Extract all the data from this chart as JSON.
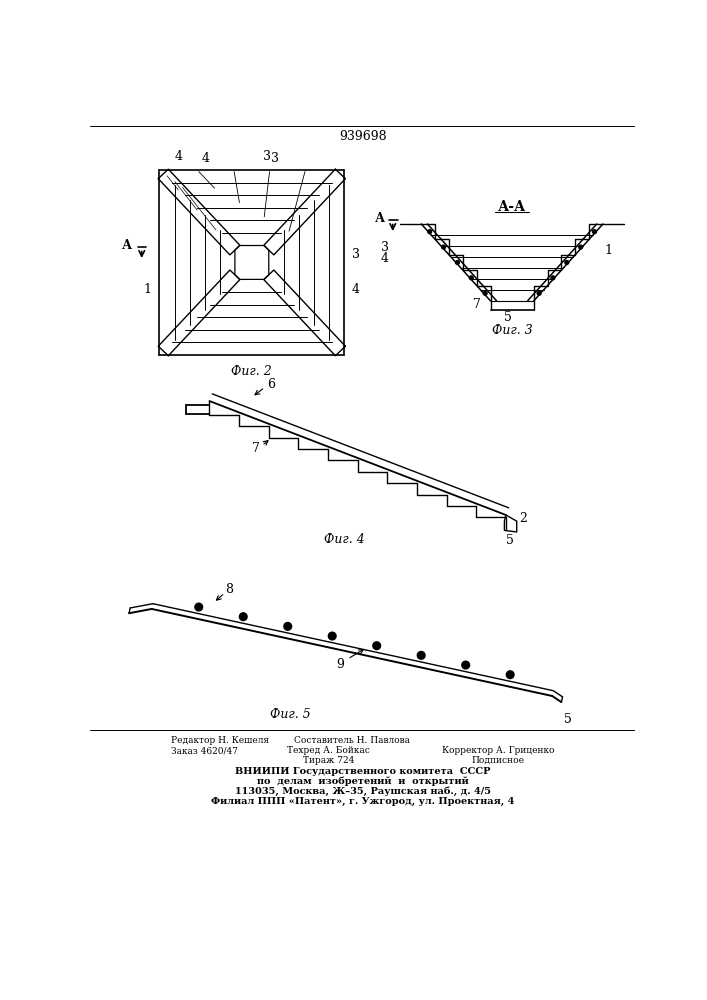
{
  "patent_number": "939698",
  "fig2_caption": "Фиг. 2",
  "fig3_caption": "Фиг. 3",
  "fig4_caption": "Фиг. 4",
  "fig5_caption": "Фиг. 5",
  "section_label": "А-А",
  "line_color": "#000000",
  "bg_color": "#ffffff"
}
